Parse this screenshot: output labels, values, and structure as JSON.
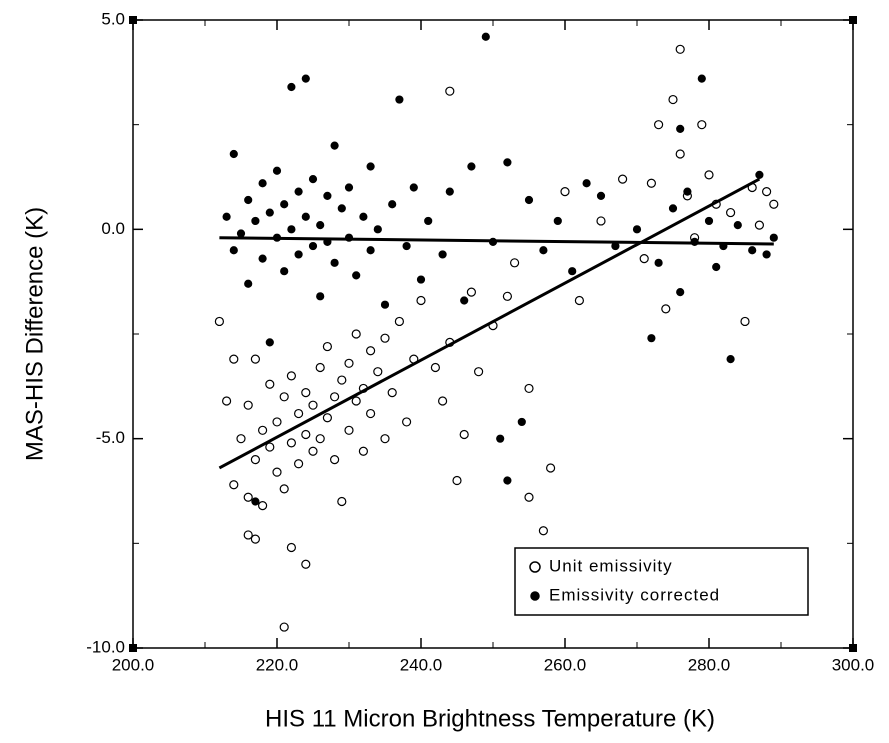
{
  "chart_data": {
    "type": "scatter",
    "x_label": "HIS 11 Micron Brightness Temperature (K)",
    "y_label": "MAS-HIS Difference (K)",
    "xlim": [
      200,
      300
    ],
    "ylim": [
      -10,
      5
    ],
    "xticks": [
      {
        "value": 200,
        "label": "200.0"
      },
      {
        "value": 220,
        "label": "220.0"
      },
      {
        "value": 240,
        "label": "240.0"
      },
      {
        "value": 260,
        "label": "260.0"
      },
      {
        "value": 280,
        "label": "280.0"
      },
      {
        "value": 300,
        "label": "300.0"
      }
    ],
    "yticks": [
      {
        "value": 5,
        "label": "5.0"
      },
      {
        "value": 0,
        "label": "0.0"
      },
      {
        "value": -5,
        "label": "-5.0"
      },
      {
        "value": -10,
        "label": "-10.0"
      }
    ],
    "xminor": [
      210,
      230,
      250,
      270,
      290
    ],
    "yminor": [
      2.5,
      -2.5,
      -7.5
    ],
    "series": [
      {
        "name": "Unit emissivity",
        "color": "#000000",
        "marker": "open",
        "x": [
          213,
          214,
          215,
          216,
          216,
          217,
          217,
          218,
          218,
          219,
          219,
          220,
          220,
          221,
          221,
          221,
          222,
          222,
          222,
          223,
          223,
          224,
          224,
          224,
          225,
          225,
          226,
          226,
          227,
          227,
          228,
          228,
          229,
          229,
          230,
          230,
          231,
          231,
          232,
          232,
          233,
          233,
          234,
          235,
          235,
          236,
          237,
          238,
          239,
          240,
          242,
          243,
          244,
          244,
          245,
          246,
          247,
          248,
          250,
          252,
          253,
          255,
          255,
          257,
          258,
          260,
          262,
          265,
          268,
          271,
          272,
          273,
          274,
          275,
          276,
          276,
          277,
          278,
          279,
          280,
          281,
          283,
          285,
          286,
          287,
          288,
          289,
          212,
          214,
          216,
          217
        ],
        "values": [
          -4.1,
          -6.1,
          -5.0,
          -4.2,
          -6.4,
          -3.1,
          -5.5,
          -4.8,
          -6.6,
          -5.2,
          -3.7,
          -4.6,
          -5.8,
          -4.0,
          -6.2,
          -9.5,
          -5.1,
          -3.5,
          -7.6,
          -4.4,
          -5.6,
          -4.9,
          -3.9,
          -8.0,
          -5.3,
          -4.2,
          -3.3,
          -5.0,
          -4.5,
          -2.8,
          -4.0,
          -5.5,
          -3.6,
          -6.5,
          -3.2,
          -4.8,
          -2.5,
          -4.1,
          -3.8,
          -5.3,
          -2.9,
          -4.4,
          -3.4,
          -2.6,
          -5.0,
          -3.9,
          -2.2,
          -4.6,
          -3.1,
          -1.7,
          -3.3,
          -4.1,
          3.3,
          -2.7,
          -6.0,
          -4.9,
          -1.5,
          -3.4,
          -2.3,
          -1.6,
          -0.8,
          -3.8,
          -6.4,
          -7.2,
          -5.7,
          0.9,
          -1.7,
          0.2,
          1.2,
          -0.7,
          1.1,
          2.5,
          -1.9,
          3.1,
          4.3,
          1.8,
          0.8,
          -0.2,
          2.5,
          1.3,
          0.6,
          0.4,
          -2.2,
          1.0,
          0.1,
          0.9,
          0.6,
          -2.2,
          -3.1,
          -7.3,
          -7.4
        ],
        "fit_x": [
          212,
          287
        ],
        "fit_y": [
          -5.7,
          1.2
        ]
      },
      {
        "name": "Emissivity corrected",
        "color": "#000000",
        "marker": "filled",
        "x": [
          213,
          214,
          214,
          215,
          216,
          216,
          217,
          217,
          218,
          218,
          219,
          219,
          220,
          220,
          221,
          221,
          222,
          222,
          223,
          223,
          224,
          224,
          225,
          225,
          226,
          226,
          227,
          227,
          228,
          228,
          229,
          230,
          230,
          231,
          232,
          233,
          233,
          234,
          235,
          236,
          237,
          238,
          239,
          240,
          241,
          243,
          244,
          246,
          247,
          249,
          250,
          251,
          252,
          252,
          254,
          255,
          257,
          259,
          261,
          263,
          265,
          267,
          270,
          272,
          273,
          275,
          276,
          277,
          278,
          279,
          280,
          281,
          282,
          283,
          284,
          286,
          287,
          288,
          289,
          276
        ],
        "values": [
          0.3,
          -0.5,
          1.8,
          -0.1,
          0.7,
          -1.3,
          0.2,
          -6.5,
          1.1,
          -0.7,
          0.4,
          -2.7,
          -0.2,
          1.4,
          0.6,
          -1.0,
          3.4,
          0.0,
          -0.6,
          0.9,
          3.6,
          0.3,
          -0.4,
          1.2,
          0.1,
          -1.6,
          0.8,
          -0.3,
          2.0,
          -0.8,
          0.5,
          -0.2,
          1.0,
          -1.1,
          0.3,
          -0.5,
          1.5,
          0.0,
          -1.8,
          0.6,
          3.1,
          -0.4,
          1.0,
          -1.2,
          0.2,
          -0.6,
          0.9,
          -1.7,
          1.5,
          4.6,
          -0.3,
          -5.0,
          -6.0,
          1.6,
          -4.6,
          0.7,
          -0.5,
          0.2,
          -1.0,
          1.1,
          0.8,
          -0.4,
          0.0,
          -2.6,
          -0.8,
          0.5,
          -1.5,
          0.9,
          -0.3,
          3.6,
          0.2,
          -0.9,
          -0.4,
          -3.1,
          0.1,
          -0.5,
          1.3,
          -0.6,
          -0.2,
          2.4
        ],
        "fit_x": [
          212,
          289
        ],
        "fit_y": [
          -0.2,
          -0.35
        ]
      }
    ]
  }
}
